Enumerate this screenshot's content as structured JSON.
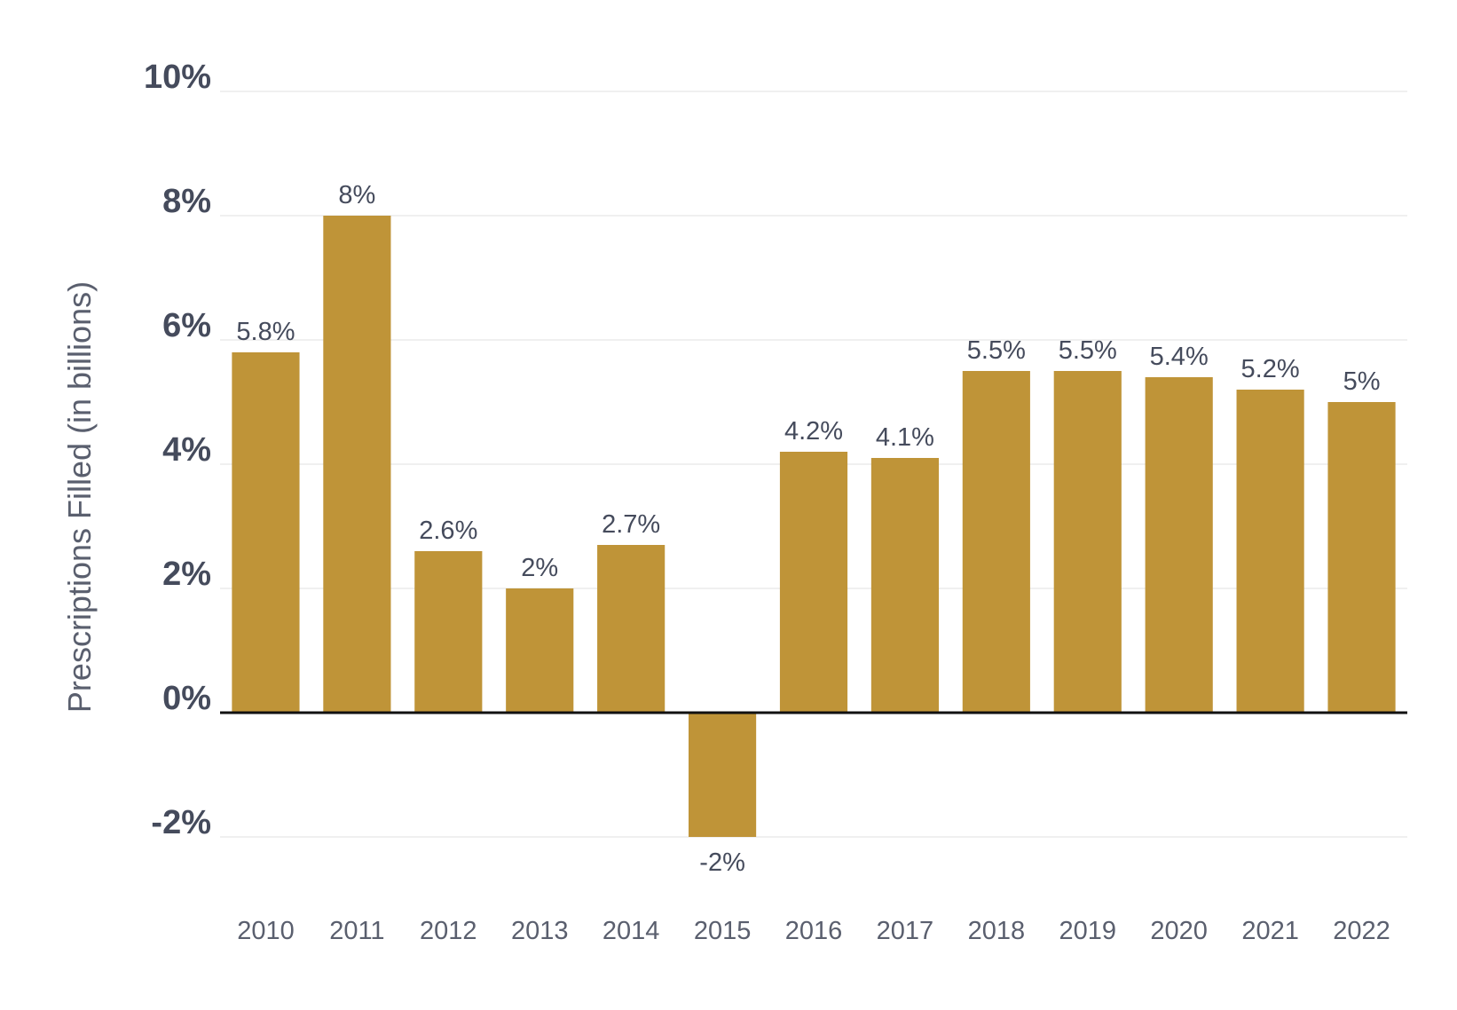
{
  "chart_data": {
    "type": "bar",
    "title": "",
    "xlabel": "",
    "ylabel": "Prescriptions Filled (in billions)",
    "categories": [
      "2010",
      "2011",
      "2012",
      "2013",
      "2014",
      "2015",
      "2016",
      "2017",
      "2018",
      "2019",
      "2020",
      "2021",
      "2022"
    ],
    "values": [
      5.8,
      8,
      2.6,
      2,
      2.7,
      -2,
      4.2,
      4.1,
      5.5,
      5.5,
      5.4,
      5.2,
      5
    ],
    "data_labels": [
      "5.8%",
      "8%",
      "2.6%",
      "2%",
      "2.7%",
      "-2%",
      "4.2%",
      "4.1%",
      "5.5%",
      "5.5%",
      "5.4%",
      "5.2%",
      "5%"
    ],
    "y_ticks": [
      -2,
      0,
      2,
      4,
      6,
      8,
      10
    ],
    "y_tick_labels": [
      "-2%",
      "0%",
      "2%",
      "4%",
      "6%",
      "8%",
      "10%"
    ],
    "ylim": [
      -2.4,
      10.4
    ],
    "grid": true,
    "legend": "none",
    "colors": {
      "bar": "#bf9438",
      "grid": "#ebebeb",
      "zero_line": "#111111"
    }
  }
}
